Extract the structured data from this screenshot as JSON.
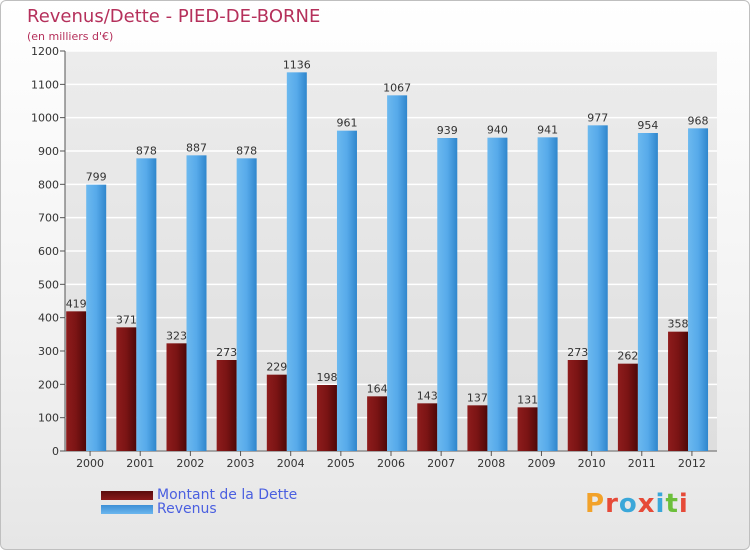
{
  "header": {
    "title": "Revenus/Dette - PIED-DE-BORNE",
    "subtitle": "(en milliers d'€)"
  },
  "brand": {
    "text": "Proxiti",
    "letters": [
      "P",
      "r",
      "o",
      "x",
      "i",
      "t",
      "i"
    ],
    "colors": [
      "#f2a22a",
      "#e64a38",
      "#3aa7d9",
      "#e64a38",
      "#3aa7d9",
      "#6cbf3b",
      "#e64a38"
    ]
  },
  "colors": {
    "debt": "#7a1414",
    "revenue": "#4aa3e6",
    "axis_text": "#333333",
    "grid": "#ffffff",
    "title": "#b5305b",
    "legend_text": "#4a5fe0"
  },
  "chart_data": {
    "type": "bar",
    "title": "Revenus/Dette - PIED-DE-BORNE",
    "ylabel": "(en milliers d'€)",
    "categories": [
      "2000",
      "2001",
      "2002",
      "2003",
      "2004",
      "2005",
      "2006",
      "2007",
      "2008",
      "2009",
      "2010",
      "2011",
      "2012"
    ],
    "series": [
      {
        "name": "Montant de la Dette",
        "values": [
          419,
          371,
          323,
          273,
          229,
          198,
          164,
          143,
          137,
          131,
          273,
          262,
          358
        ]
      },
      {
        "name": "Revenus",
        "values": [
          799,
          878,
          887,
          878,
          1136,
          961,
          1067,
          939,
          940,
          941,
          977,
          954,
          968
        ]
      }
    ],
    "ylim": [
      0,
      1200
    ],
    "yticks": [
      0,
      100,
      200,
      300,
      400,
      500,
      600,
      700,
      800,
      900,
      1000,
      1100,
      1200
    ],
    "grid": true,
    "legend": "bottom-left"
  }
}
